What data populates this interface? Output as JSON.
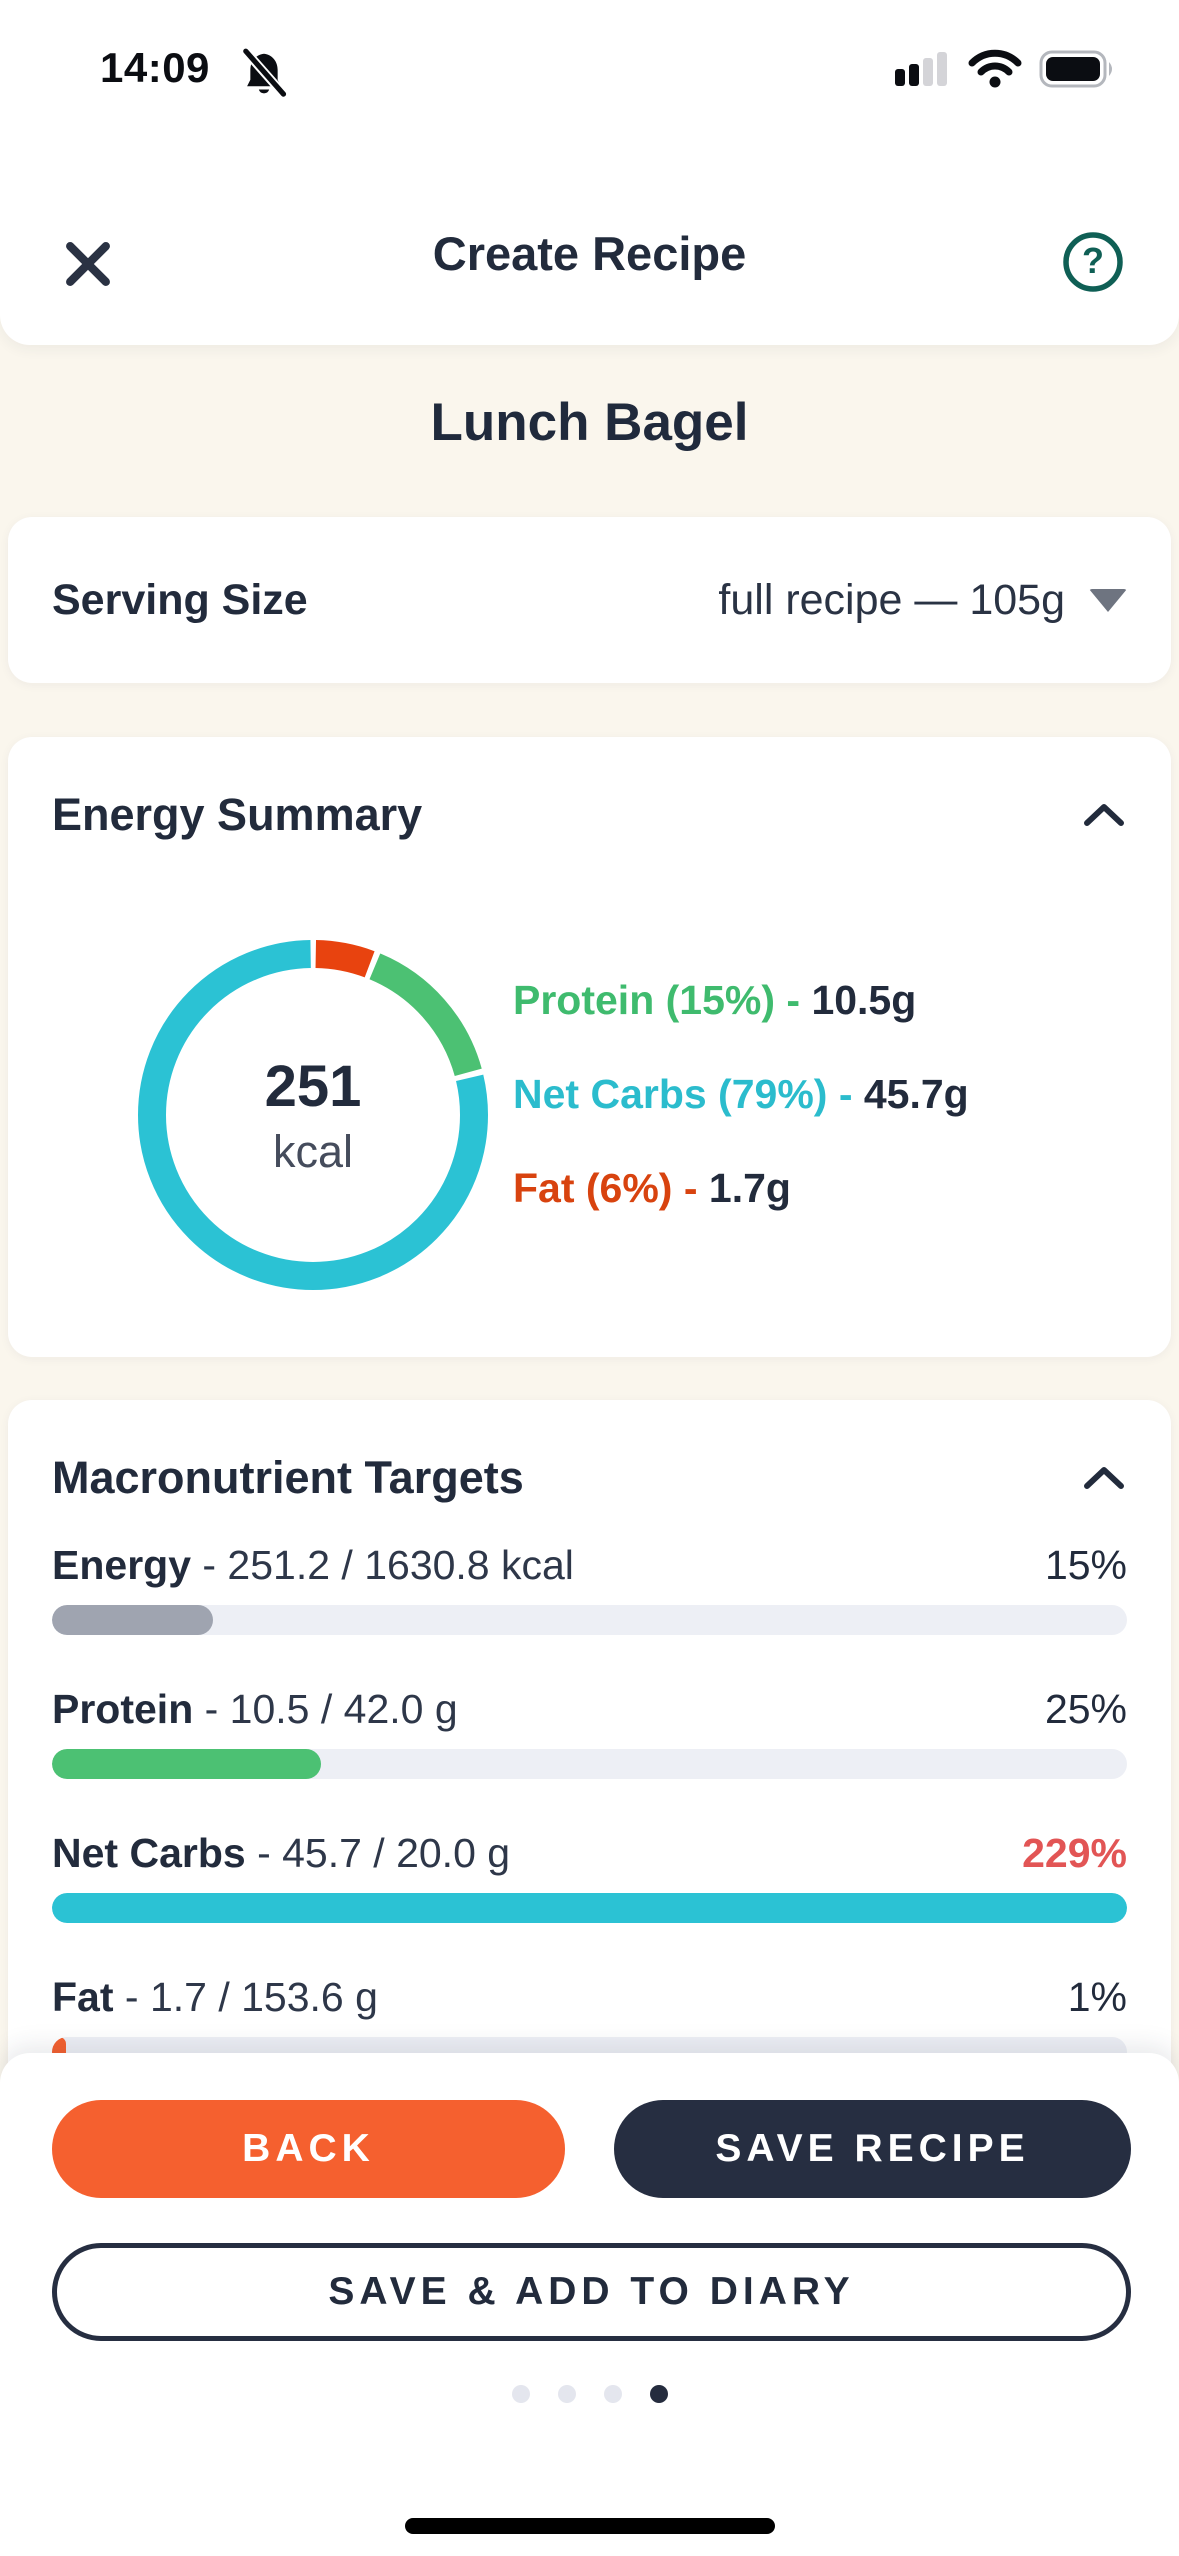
{
  "status_bar": {
    "time": "14:09",
    "icons": [
      "notifications-off-icon",
      "cellular-signal-icon",
      "wifi-icon",
      "battery-icon"
    ]
  },
  "header": {
    "title": "Create Recipe"
  },
  "recipe_name": "Lunch Bagel",
  "serving": {
    "label": "Serving Size",
    "value": "full recipe — 105g"
  },
  "sections": {
    "energy_summary": "Energy Summary",
    "macro_targets": "Macronutrient Targets"
  },
  "chart_data": [
    {
      "type": "pie",
      "variant": "donut",
      "title": "Energy Summary",
      "center": {
        "value": "251",
        "unit": "kcal"
      },
      "direction": "clockwise",
      "start_angle_deg": 0,
      "gap_deg": 2,
      "slices": [
        {
          "label": "Fat",
          "percent": 6,
          "grams": 1.7,
          "color": "#e8430f"
        },
        {
          "label": "Protein",
          "percent": 15,
          "grams": 10.5,
          "color": "#4cc173"
        },
        {
          "label": "Net Carbs",
          "percent": 79,
          "grams": 45.7,
          "color": "#2bc2d4"
        }
      ],
      "legend_position": "right",
      "legend_separator": "-",
      "legend": [
        {
          "label": "Protein (15%)",
          "value": "10.5g",
          "color": "#3fbb6e"
        },
        {
          "label": "Net Carbs (79%)",
          "value": "45.7g",
          "color": "#2bbccd"
        },
        {
          "label": "Fat (6%)",
          "value": "1.7g",
          "color": "#d8430f"
        }
      ]
    },
    {
      "type": "bar",
      "variant": "progress-list",
      "title": "Macronutrient Targets",
      "track_color": "#edeff5",
      "rows": [
        {
          "name": "Energy",
          "detail": "- 251.2 / 1630.8 kcal",
          "current": 251.2,
          "target": 1630.8,
          "unit": "kcal",
          "percent": 15,
          "percent_label": "15%",
          "fill_color": "#9fa4b0",
          "percent_color": "#222b3c",
          "over_target": false
        },
        {
          "name": "Protein",
          "detail": "- 10.5 / 42.0 g",
          "current": 10.5,
          "target": 42.0,
          "unit": "g",
          "percent": 25,
          "percent_label": "25%",
          "fill_color": "#4cc173",
          "percent_color": "#222b3c",
          "over_target": false
        },
        {
          "name": "Net Carbs",
          "detail": "- 45.7 / 20.0 g",
          "current": 45.7,
          "target": 20.0,
          "unit": "g",
          "percent": 229,
          "percent_label": "229%",
          "fill_color": "#2bc2d4",
          "percent_color": "#e25555",
          "over_target": true
        },
        {
          "name": "Fat",
          "detail": "- 1.7 / 153.6 g",
          "current": 1.7,
          "target": 153.6,
          "unit": "g",
          "percent": 1,
          "percent_label": "1%",
          "fill_color": "#f5602f",
          "percent_color": "#222b3c",
          "over_target": false
        }
      ]
    }
  ],
  "actions": {
    "back": "BACK",
    "save": "SAVE RECIPE",
    "save_add": "SAVE & ADD TO DIARY"
  },
  "pagination": {
    "total": 4,
    "active_index": 3
  },
  "colors": {
    "background": "#faf6ed",
    "card": "#ffffff",
    "text_primary": "#222b3c",
    "accent_orange": "#f5602f",
    "accent_navy": "#262e41",
    "protein_green": "#4cc173",
    "carbs_cyan": "#2bc2d4",
    "fat_red": "#e8430f",
    "over_target_red": "#e25555",
    "help_teal": "#0f5f55"
  }
}
